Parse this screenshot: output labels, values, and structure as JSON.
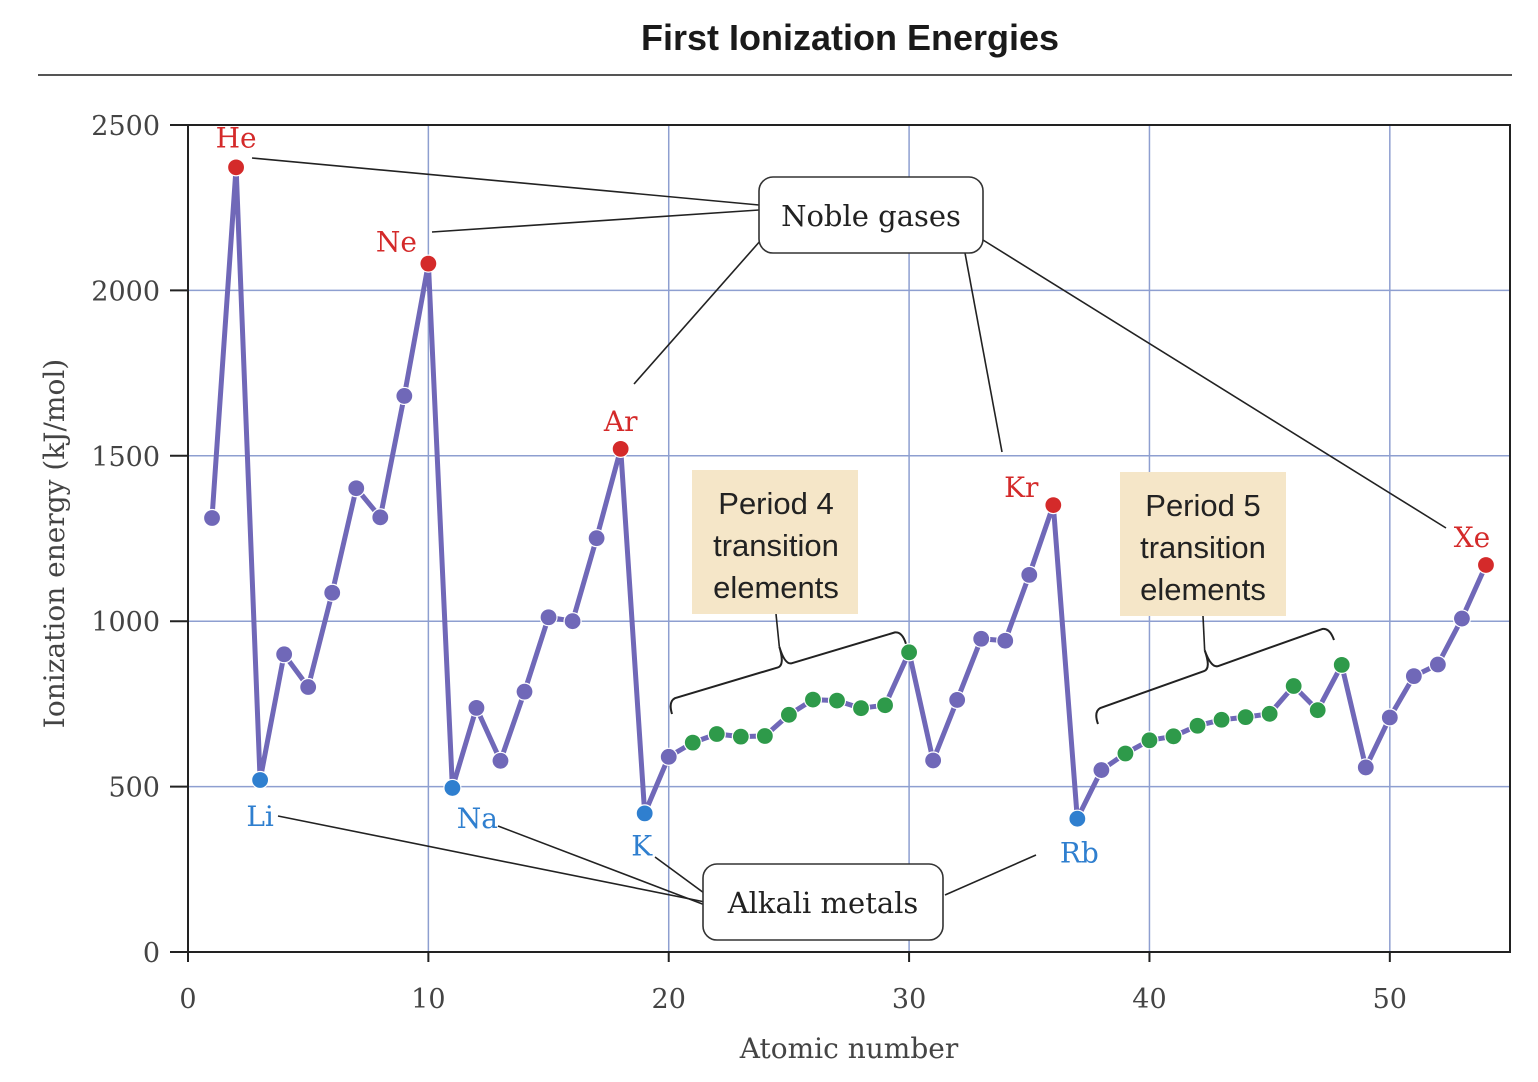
{
  "chart_data": {
    "type": "line",
    "title": "First Ionization Energies",
    "xlabel": "Atomic number",
    "ylabel": "Ionization energy (kJ/mol)",
    "xlim": [
      0,
      55
    ],
    "ylim": [
      0,
      2500
    ],
    "x_ticks": [
      0,
      10,
      20,
      30,
      40,
      50
    ],
    "y_ticks": [
      0,
      500,
      1000,
      1500,
      2000,
      2500
    ],
    "grid": true,
    "colors": {
      "line": "#7068b8",
      "point_default": "#7068b8",
      "noble": "#d42a2a",
      "alkali": "#2f7fcf",
      "transition": "#2e9a4a",
      "grid": "#8e9fd0",
      "period_box": "#f5e6c8"
    },
    "points": [
      {
        "z": 1,
        "ie": 1312,
        "group": "other"
      },
      {
        "z": 2,
        "ie": 2372,
        "group": "noble",
        "symbol": "He"
      },
      {
        "z": 3,
        "ie": 520,
        "group": "alkali",
        "symbol": "Li"
      },
      {
        "z": 4,
        "ie": 900,
        "group": "other"
      },
      {
        "z": 5,
        "ie": 801,
        "group": "other"
      },
      {
        "z": 6,
        "ie": 1086,
        "group": "other"
      },
      {
        "z": 7,
        "ie": 1402,
        "group": "other"
      },
      {
        "z": 8,
        "ie": 1314,
        "group": "other"
      },
      {
        "z": 9,
        "ie": 1681,
        "group": "other"
      },
      {
        "z": 10,
        "ie": 2081,
        "group": "noble",
        "symbol": "Ne"
      },
      {
        "z": 11,
        "ie": 496,
        "group": "alkali",
        "symbol": "Na"
      },
      {
        "z": 12,
        "ie": 738,
        "group": "other"
      },
      {
        "z": 13,
        "ie": 578,
        "group": "other"
      },
      {
        "z": 14,
        "ie": 787,
        "group": "other"
      },
      {
        "z": 15,
        "ie": 1012,
        "group": "other"
      },
      {
        "z": 16,
        "ie": 1000,
        "group": "other"
      },
      {
        "z": 17,
        "ie": 1251,
        "group": "other"
      },
      {
        "z": 18,
        "ie": 1521,
        "group": "noble",
        "symbol": "Ar"
      },
      {
        "z": 19,
        "ie": 419,
        "group": "alkali",
        "symbol": "K"
      },
      {
        "z": 20,
        "ie": 590,
        "group": "other"
      },
      {
        "z": 21,
        "ie": 633,
        "group": "transition"
      },
      {
        "z": 22,
        "ie": 659,
        "group": "transition"
      },
      {
        "z": 23,
        "ie": 651,
        "group": "transition"
      },
      {
        "z": 24,
        "ie": 653,
        "group": "transition"
      },
      {
        "z": 25,
        "ie": 717,
        "group": "transition"
      },
      {
        "z": 26,
        "ie": 763,
        "group": "transition"
      },
      {
        "z": 27,
        "ie": 760,
        "group": "transition"
      },
      {
        "z": 28,
        "ie": 737,
        "group": "transition"
      },
      {
        "z": 29,
        "ie": 746,
        "group": "transition"
      },
      {
        "z": 30,
        "ie": 906,
        "group": "transition"
      },
      {
        "z": 31,
        "ie": 579,
        "group": "other"
      },
      {
        "z": 32,
        "ie": 762,
        "group": "other"
      },
      {
        "z": 33,
        "ie": 947,
        "group": "other"
      },
      {
        "z": 34,
        "ie": 941,
        "group": "other"
      },
      {
        "z": 35,
        "ie": 1140,
        "group": "other"
      },
      {
        "z": 36,
        "ie": 1351,
        "group": "noble",
        "symbol": "Kr"
      },
      {
        "z": 37,
        "ie": 403,
        "group": "alkali",
        "symbol": "Rb"
      },
      {
        "z": 38,
        "ie": 550,
        "group": "other"
      },
      {
        "z": 39,
        "ie": 600,
        "group": "transition"
      },
      {
        "z": 40,
        "ie": 640,
        "group": "transition"
      },
      {
        "z": 41,
        "ie": 652,
        "group": "transition"
      },
      {
        "z": 42,
        "ie": 684,
        "group": "transition"
      },
      {
        "z": 43,
        "ie": 702,
        "group": "transition"
      },
      {
        "z": 44,
        "ie": 710,
        "group": "transition"
      },
      {
        "z": 45,
        "ie": 720,
        "group": "transition"
      },
      {
        "z": 46,
        "ie": 804,
        "group": "transition"
      },
      {
        "z": 47,
        "ie": 731,
        "group": "transition"
      },
      {
        "z": 48,
        "ie": 868,
        "group": "transition"
      },
      {
        "z": 49,
        "ie": 558,
        "group": "other"
      },
      {
        "z": 50,
        "ie": 709,
        "group": "other"
      },
      {
        "z": 51,
        "ie": 834,
        "group": "other"
      },
      {
        "z": 52,
        "ie": 869,
        "group": "other"
      },
      {
        "z": 53,
        "ie": 1008,
        "group": "other"
      },
      {
        "z": 54,
        "ie": 1170,
        "group": "noble",
        "symbol": "Xe"
      }
    ],
    "annotations": {
      "noble_gases": "Noble gases",
      "alkali_metals": "Alkali metals",
      "period4": [
        "Period 4",
        "transition",
        "elements"
      ],
      "period5": [
        "Period 5",
        "transition",
        "elements"
      ]
    }
  }
}
